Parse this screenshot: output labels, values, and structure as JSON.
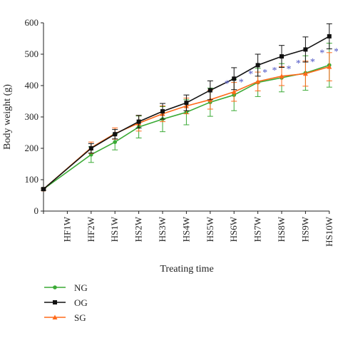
{
  "chart_data": {
    "type": "line",
    "title": "",
    "xlabel": "Treating time",
    "ylabel": "Body weight (g)",
    "ylim": [
      0,
      600
    ],
    "yticks": [
      0,
      100,
      200,
      300,
      400,
      500,
      600
    ],
    "categories": [
      "",
      "HF1W",
      "HF2W",
      "HS1W",
      "HS2W",
      "HS3W",
      "HS4W",
      "HS5W",
      "HS6W",
      "HS7W",
      "HS8W",
      "HS9W",
      "HS10W"
    ],
    "grid": false,
    "legend_position": "bottom-left",
    "series": [
      {
        "name": "NG",
        "color": "#3aaa35",
        "marker": "circle",
        "points": [
          [
            0,
            70
          ],
          [
            2,
            180
          ],
          [
            3,
            220
          ],
          [
            4,
            268
          ],
          [
            5,
            293
          ],
          [
            6,
            315
          ],
          [
            7,
            347
          ],
          [
            8,
            370
          ],
          [
            9,
            410
          ],
          [
            10,
            425
          ],
          [
            11,
            440
          ],
          [
            12,
            465
          ]
        ],
        "err": [
          3,
          25,
          25,
          35,
          40,
          40,
          45,
          50,
          45,
          45,
          55,
          70
        ]
      },
      {
        "name": "OG",
        "color": "#111111",
        "marker": "square",
        "points": [
          [
            0,
            70
          ],
          [
            2,
            200
          ],
          [
            3,
            245
          ],
          [
            4,
            285
          ],
          [
            5,
            318
          ],
          [
            6,
            345
          ],
          [
            7,
            385
          ],
          [
            8,
            422
          ],
          [
            9,
            465
          ],
          [
            10,
            493
          ],
          [
            11,
            515
          ],
          [
            12,
            557
          ]
        ],
        "err": [
          3,
          15,
          15,
          20,
          25,
          25,
          30,
          35,
          35,
          35,
          40,
          40
        ]
      },
      {
        "name": "SG",
        "color": "#ff6a1a",
        "marker": "triangle",
        "points": [
          [
            0,
            70
          ],
          [
            2,
            202
          ],
          [
            3,
            247
          ],
          [
            4,
            280
          ],
          [
            5,
            310
          ],
          [
            6,
            335
          ],
          [
            7,
            355
          ],
          [
            8,
            380
          ],
          [
            9,
            413
          ],
          [
            10,
            430
          ],
          [
            11,
            438
          ],
          [
            12,
            460
          ]
        ],
        "err": [
          3,
          18,
          18,
          25,
          25,
          25,
          30,
          30,
          30,
          30,
          40,
          45
        ]
      }
    ],
    "annotations": [
      {
        "text": "*",
        "x": 8,
        "y": 415,
        "color": "#4a52c4"
      },
      {
        "text": "*",
        "x": 9,
        "y": 445,
        "color": "#4a52c4"
      },
      {
        "text": "*",
        "x": 10,
        "y": 457,
        "color": "#4a52c4"
      },
      {
        "text": "*",
        "x": 11,
        "y": 480,
        "color": "#4a52c4"
      },
      {
        "text": "*",
        "x": 12,
        "y": 512,
        "color": "#4a52c4"
      }
    ]
  }
}
